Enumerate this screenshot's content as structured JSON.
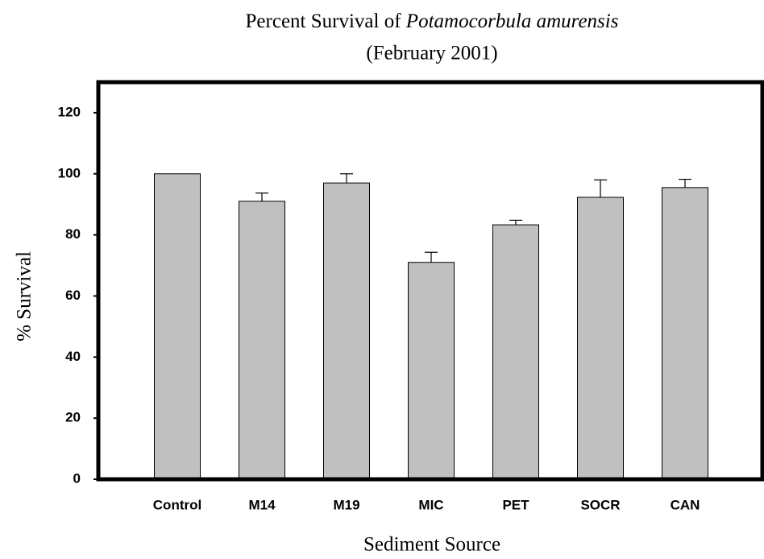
{
  "chart_data": {
    "type": "bar",
    "title": [
      "Percent Survival of",
      "Potamocorbula amurensis"
    ],
    "subtitle": "(February 2001)",
    "x_label": "Sediment Source",
    "y_label": "% Survival",
    "categories": [
      "Control",
      "M14",
      "M19",
      "MIC",
      "PET",
      "SOCR",
      "CAN"
    ],
    "values": [
      100,
      91,
      97,
      71,
      83.3,
      92.3,
      95.5
    ],
    "errors": [
      null,
      2.7,
      3,
      3.3,
      1.5,
      5.7,
      2.7
    ],
    "color": "#c0c0c0",
    "ylim": [
      0,
      130
    ],
    "yticks": [
      0,
      20,
      40,
      60,
      80,
      100,
      120
    ]
  }
}
